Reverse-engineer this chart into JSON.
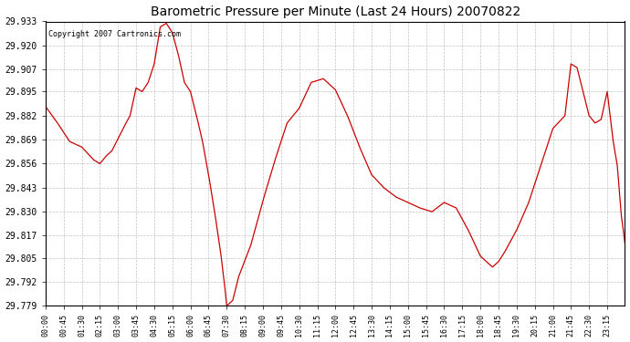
{
  "title": "Barometric Pressure per Minute (Last 24 Hours) 20070822",
  "copyright": "Copyright 2007 Cartronics.com",
  "line_color": "#cc0000",
  "bg_color": "#ffffff",
  "grid_color": "#999999",
  "yticks": [
    29.779,
    29.792,
    29.805,
    29.817,
    29.83,
    29.843,
    29.856,
    29.869,
    29.882,
    29.895,
    29.907,
    29.92,
    29.933
  ],
  "ymin": 29.779,
  "ymax": 29.933,
  "keypoints": [
    [
      0,
      29.887
    ],
    [
      30,
      29.878
    ],
    [
      60,
      29.868
    ],
    [
      90,
      29.865
    ],
    [
      120,
      29.858
    ],
    [
      135,
      29.856
    ],
    [
      150,
      29.86
    ],
    [
      165,
      29.863
    ],
    [
      195,
      29.876
    ],
    [
      210,
      29.882
    ],
    [
      225,
      29.897
    ],
    [
      240,
      29.895
    ],
    [
      255,
      29.9
    ],
    [
      270,
      29.91
    ],
    [
      285,
      29.93
    ],
    [
      300,
      29.932
    ],
    [
      315,
      29.927
    ],
    [
      330,
      29.915
    ],
    [
      345,
      29.9
    ],
    [
      360,
      29.895
    ],
    [
      375,
      29.882
    ],
    [
      390,
      29.868
    ],
    [
      405,
      29.85
    ],
    [
      420,
      29.83
    ],
    [
      435,
      29.808
    ],
    [
      445,
      29.79
    ],
    [
      450,
      29.779
    ],
    [
      465,
      29.782
    ],
    [
      480,
      29.795
    ],
    [
      510,
      29.812
    ],
    [
      540,
      29.836
    ],
    [
      570,
      29.858
    ],
    [
      600,
      29.878
    ],
    [
      630,
      29.886
    ],
    [
      660,
      29.9
    ],
    [
      690,
      29.902
    ],
    [
      720,
      29.896
    ],
    [
      750,
      29.882
    ],
    [
      780,
      29.865
    ],
    [
      810,
      29.85
    ],
    [
      840,
      29.843
    ],
    [
      870,
      29.838
    ],
    [
      900,
      29.835
    ],
    [
      930,
      29.832
    ],
    [
      960,
      29.83
    ],
    [
      990,
      29.835
    ],
    [
      1020,
      29.832
    ],
    [
      1050,
      29.82
    ],
    [
      1080,
      29.806
    ],
    [
      1095,
      29.803
    ],
    [
      1110,
      29.8
    ],
    [
      1125,
      29.803
    ],
    [
      1140,
      29.808
    ],
    [
      1170,
      29.82
    ],
    [
      1200,
      29.835
    ],
    [
      1230,
      29.855
    ],
    [
      1260,
      29.875
    ],
    [
      1290,
      29.882
    ],
    [
      1305,
      29.91
    ],
    [
      1320,
      29.908
    ],
    [
      1335,
      29.895
    ],
    [
      1350,
      29.882
    ],
    [
      1365,
      29.878
    ],
    [
      1380,
      29.88
    ],
    [
      1395,
      29.895
    ],
    [
      1410,
      29.868
    ],
    [
      1420,
      29.855
    ],
    [
      1430,
      29.828
    ],
    [
      1439,
      29.813
    ]
  ]
}
